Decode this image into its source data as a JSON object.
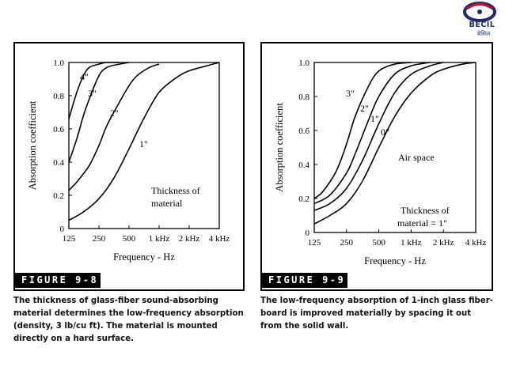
{
  "logo": {
    "text": "BECIL",
    "subtext": "बेसिल",
    "colors": {
      "ring_blue": "#1d2a6e",
      "ring_red": "#c8102e"
    }
  },
  "figures": [
    {
      "label": "FIGURE 9-8",
      "caption": "The thickness of glass-fiber sound-absorbing material determines the low-frequency absorption (density, 3 lb/cu ft). The material is mounted directly on a hard surface."
    },
    {
      "label": "FIGURE 9-9",
      "caption": "The low-frequency absorption of 1-inch glass fiber-board is improved materially by spacing it out from the solid wall."
    }
  ],
  "chart_data": [
    {
      "type": "line",
      "xscale": "log",
      "xlabel": "Frequency - Hz",
      "ylabel": "Absorption coefficient",
      "xlim": [
        125,
        4000
      ],
      "ylim": [
        0,
        1.0
      ],
      "xticks": [
        125,
        250,
        500,
        1000,
        2000,
        4000
      ],
      "xtick_labels": [
        "125",
        "250",
        "500",
        "1 kHz",
        "2 kHz",
        "4 kHz"
      ],
      "yticks": [
        0,
        0.2,
        0.4,
        0.6,
        0.8,
        1.0
      ],
      "ytick_labels": [
        "0",
        "0.2",
        "0.4",
        "0.6",
        "0.8",
        "1.0"
      ],
      "annotation": [
        "Thickness of",
        "material"
      ],
      "series": [
        {
          "name": "4\"",
          "x": [
            125,
            150,
            175,
            200,
            250,
            300,
            400
          ],
          "y": [
            0.66,
            0.82,
            0.92,
            0.97,
            0.99,
            1.0,
            1.0
          ]
        },
        {
          "name": "3\"",
          "x": [
            125,
            150,
            175,
            200,
            250,
            300,
            400,
            500
          ],
          "y": [
            0.4,
            0.54,
            0.68,
            0.78,
            0.92,
            0.97,
            0.99,
            1.0
          ]
        },
        {
          "name": "2\"",
          "x": [
            125,
            150,
            200,
            250,
            300,
            400,
            500,
            600,
            800,
            1000
          ],
          "y": [
            0.23,
            0.28,
            0.38,
            0.5,
            0.62,
            0.76,
            0.86,
            0.92,
            0.97,
            0.99
          ]
        },
        {
          "name": "1\"",
          "x": [
            125,
            175,
            250,
            350,
            500,
            700,
            1000,
            1500,
            2000,
            3000,
            4000
          ],
          "y": [
            0.05,
            0.1,
            0.18,
            0.3,
            0.48,
            0.66,
            0.82,
            0.91,
            0.95,
            0.98,
            1.0
          ]
        }
      ]
    },
    {
      "type": "line",
      "xscale": "log",
      "xlabel": "Frequency - Hz",
      "ylabel": "Absorption coefficient",
      "xlim": [
        125,
        4000
      ],
      "ylim": [
        0,
        1.0
      ],
      "xticks": [
        125,
        250,
        500,
        1000,
        2000,
        4000
      ],
      "xtick_labels": [
        "125",
        "250",
        "500",
        "1 kHz",
        "2 kHz",
        "4 kHz"
      ],
      "yticks": [
        0,
        0.2,
        0.4,
        0.6,
        0.8,
        1.0
      ],
      "ytick_labels": [
        "0",
        "0.2",
        "0.4",
        "0.6",
        "0.8",
        "1.0"
      ],
      "annotations": [
        "Air space",
        "Thickness of",
        "material = 1\""
      ],
      "series": [
        {
          "name": "3\"",
          "x": [
            125,
            150,
            200,
            250,
            300,
            400,
            500,
            700,
            1000
          ],
          "y": [
            0.2,
            0.24,
            0.36,
            0.52,
            0.68,
            0.86,
            0.95,
            0.99,
            1.0
          ]
        },
        {
          "name": "2\"",
          "x": [
            125,
            175,
            250,
            300,
            400,
            500,
            700,
            1000,
            1500
          ],
          "y": [
            0.17,
            0.22,
            0.35,
            0.46,
            0.66,
            0.8,
            0.93,
            0.98,
            1.0
          ]
        },
        {
          "name": "1\"",
          "x": [
            125,
            175,
            250,
            350,
            500,
            700,
            1000,
            1500,
            2000
          ],
          "y": [
            0.13,
            0.17,
            0.26,
            0.42,
            0.64,
            0.82,
            0.93,
            0.98,
            1.0
          ]
        },
        {
          "name": "0\"",
          "x": [
            125,
            175,
            250,
            350,
            500,
            700,
            1000,
            1500,
            2000,
            3000,
            4000
          ],
          "y": [
            0.05,
            0.1,
            0.17,
            0.3,
            0.5,
            0.68,
            0.82,
            0.92,
            0.96,
            0.99,
            1.0
          ]
        }
      ]
    }
  ]
}
